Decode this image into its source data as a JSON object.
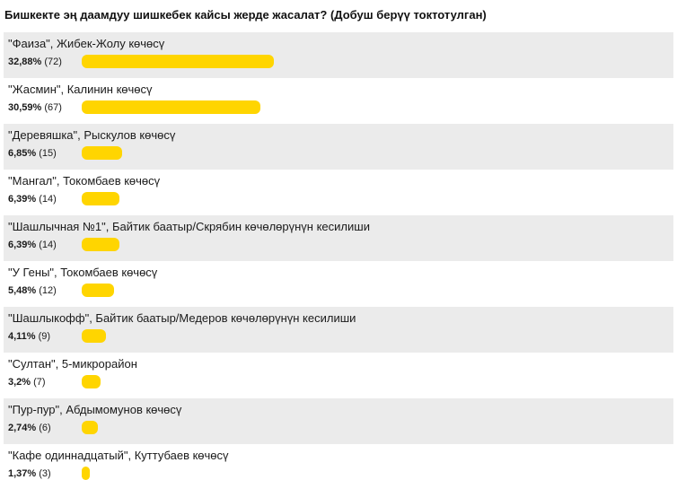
{
  "poll": {
    "title": "Бишкекте эң даамдуу шишкебек кайсы жерде жасалат? (Добуш берүү токтотулган)"
  },
  "colors": {
    "bar": "#ffd500",
    "row_shade": "#ebebeb"
  },
  "chart_data": {
    "type": "bar",
    "orientation": "horizontal",
    "title": "Бишкекте эң даамдуу шишкебек кайсы жерде жасалат? (Добуш берүү токтотулган)",
    "categories": [
      "\"Фаиза\", Жибек-Жолу көчөсү",
      "\"Жасмин\", Калинин көчөсү",
      "\"Деревяшка\", Рыскулов көчөсү",
      "\"Мангал\", Токомбаев көчөсү",
      "\"Шашлычная №1\", Байтик баатыр/Скрябин көчөлөрүнүн кесилиши",
      "\"У Гены\", Токомбаев көчөсү",
      "\"Шашлыкофф\", Байтик баатыр/Медеров көчөлөрүнүн кесилиши",
      "\"Султан\", 5-микрорайон",
      "\"Пур-пур\", Абдымомунов көчөсү",
      "\"Кафе одиннадцатый\", Куттубаев көчөсү"
    ],
    "values": [
      32.88,
      30.59,
      6.85,
      6.39,
      6.39,
      5.48,
      4.11,
      3.2,
      2.74,
      1.37
    ],
    "percent_labels": [
      "32,88%",
      "30,59%",
      "6,85%",
      "6,39%",
      "6,39%",
      "5,48%",
      "4,11%",
      "3,2%",
      "2,74%",
      "1,37%"
    ],
    "vote_counts": [
      72,
      67,
      15,
      14,
      14,
      12,
      9,
      7,
      6,
      3
    ],
    "vote_labels": [
      "(72)",
      "(67)",
      "(15)",
      "(14)",
      "(14)",
      "(12)",
      "(9)",
      "(7)",
      "(6)",
      "(3)"
    ],
    "xlim": [
      0,
      100
    ],
    "grid": false,
    "legend": "none"
  }
}
